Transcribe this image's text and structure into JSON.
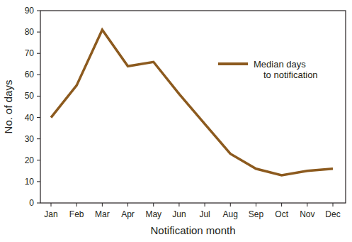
{
  "chart_data": {
    "type": "line",
    "x_label": "Notification month",
    "y_label": "No. of days",
    "categories": [
      "Jan",
      "Feb",
      "Mar",
      "Apr",
      "May",
      "Jun",
      "Jul",
      "Aug",
      "Sep",
      "Oct",
      "Nov",
      "Dec"
    ],
    "series": [
      {
        "name": "Median days\nto notification",
        "color": "#8c5a1e",
        "values": [
          40,
          55,
          81,
          64,
          66,
          51,
          37,
          23,
          16,
          13,
          15,
          16
        ]
      }
    ],
    "ylim": [
      0,
      90
    ],
    "yticks": [
      0,
      10,
      20,
      30,
      40,
      50,
      60,
      70,
      80,
      90
    ],
    "grid": false,
    "legend": "upper right"
  }
}
